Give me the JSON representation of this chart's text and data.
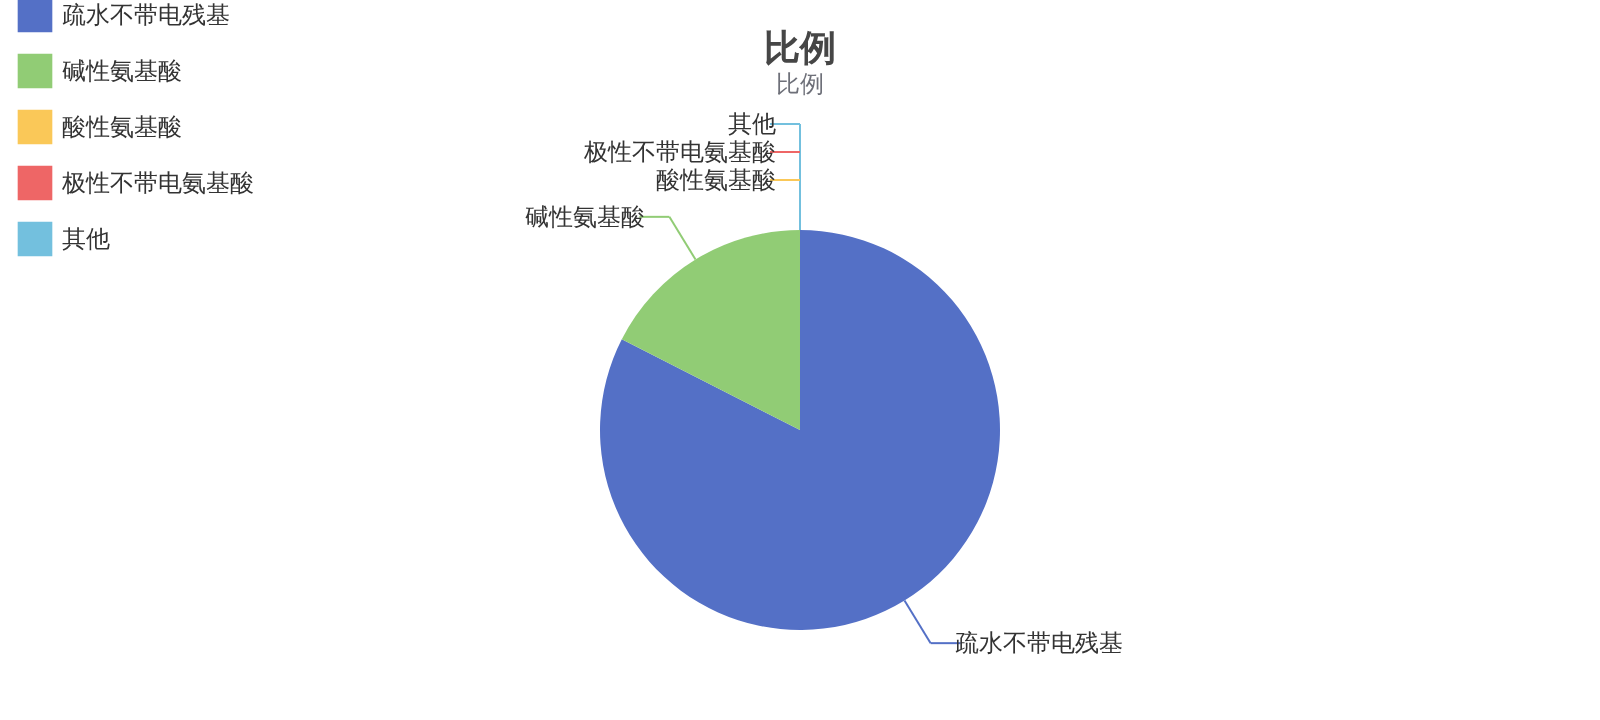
{
  "chart_data": {
    "type": "pie",
    "title": "比例",
    "subtitle": "比例",
    "categories": [
      "疏水不带电残基",
      "碱性氨基酸",
      "酸性氨基酸",
      "极性不带电氨基酸",
      "其他"
    ],
    "values": [
      82.5,
      17.5,
      0,
      0,
      0
    ],
    "colors": [
      "#5470c6",
      "#91cc75",
      "#fac858",
      "#ee6666",
      "#73c0de"
    ],
    "legend": "top left"
  }
}
